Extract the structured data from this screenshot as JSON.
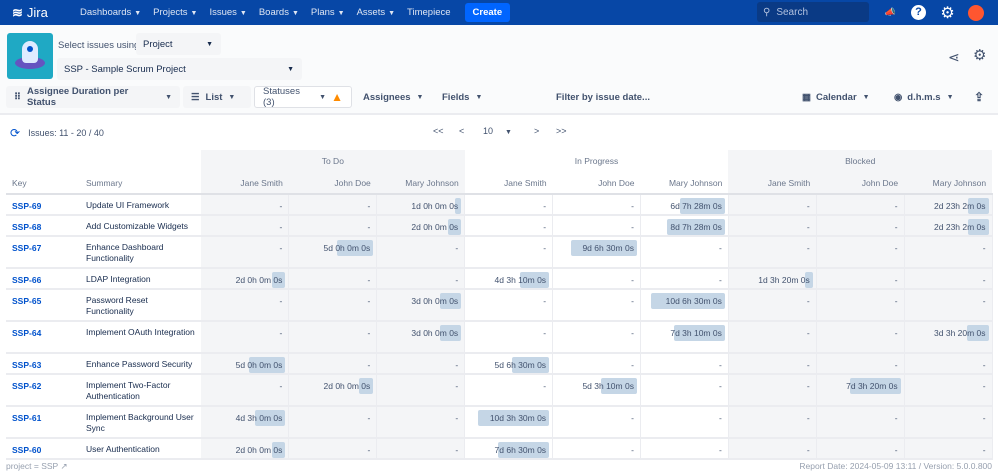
{
  "topnav": {
    "brand": "Jira",
    "items": [
      "Dashboards",
      "Projects",
      "Issues",
      "Boards",
      "Plans",
      "Assets"
    ],
    "timepiece": "Timepiece",
    "create": "Create",
    "search_placeholder": "Search"
  },
  "selector": {
    "label": "Select issues using",
    "mode": "Project",
    "project": "SSP - Sample Scrum Project"
  },
  "toolbar": {
    "report": "Assignee Duration per Status",
    "view": "List",
    "statuses": "Statuses (3)",
    "assignees": "Assignees",
    "fields": "Fields",
    "filter": "Filter by issue date...",
    "calendar": "Calendar",
    "format": "d.h.m.s"
  },
  "issues_info": "Issues: 11 - 20 / 40",
  "pager": {
    "first": "<<",
    "prev": "<",
    "page_size": "10",
    "next": ">",
    "last": ">>"
  },
  "table": {
    "key_header": "Key",
    "summary_header": "Summary",
    "groups": [
      "To Do",
      "In Progress",
      "Blocked"
    ],
    "assignees": [
      "Jane Smith",
      "John Doe",
      "Mary Johnson"
    ],
    "rows": [
      {
        "key": "SSP-69",
        "summary": "Update UI Framework",
        "cells": [
          "-",
          "-",
          "1d 0h 0m 0s",
          "-",
          "-",
          "6d 7h 28m 0s",
          "-",
          "-",
          "2d 23h 2m 0s"
        ],
        "bars": [
          0,
          0,
          0.08,
          0,
          0,
          0.55,
          0,
          0,
          0.25
        ]
      },
      {
        "key": "SSP-68",
        "summary": "Add Customizable Widgets",
        "cells": [
          "-",
          "-",
          "2d 0h 0m 0s",
          "-",
          "-",
          "8d 7h 28m 0s",
          "-",
          "-",
          "2d 23h 2m 0s"
        ],
        "bars": [
          0,
          0,
          0.16,
          0,
          0,
          0.71,
          0,
          0,
          0.25
        ]
      },
      {
        "key": "SSP-67",
        "summary": "Enhance Dashboard Functionality",
        "cells": [
          "-",
          "5d 0h 0m 0s",
          "-",
          "-",
          "9d 6h 30m 0s",
          "-",
          "-",
          "-",
          "-"
        ],
        "bars": [
          0,
          0.44,
          0,
          0,
          0.81,
          0,
          0,
          0,
          0
        ]
      },
      {
        "key": "SSP-66",
        "summary": "LDAP Integration",
        "cells": [
          "2d 0h 0m 0s",
          "-",
          "-",
          "4d 3h 10m 0s",
          "-",
          "-",
          "1d 3h 20m 0s",
          "-",
          "-"
        ],
        "bars": [
          0.16,
          0,
          0,
          0.35,
          0,
          0,
          0.1,
          0,
          0
        ]
      },
      {
        "key": "SSP-65",
        "summary": "Password Reset Functionality",
        "cells": [
          "-",
          "-",
          "3d 0h 0m 0s",
          "-",
          "-",
          "10d 6h 30m 0s",
          "-",
          "-",
          "-"
        ],
        "bars": [
          0,
          0,
          0.26,
          0,
          0,
          0.9,
          0,
          0,
          0
        ]
      },
      {
        "key": "SSP-64",
        "summary": "Implement OAuth Integration",
        "cells": [
          "-",
          "-",
          "3d 0h 0m 0s",
          "-",
          "-",
          "7d 3h 10m 0s",
          "-",
          "-",
          "3d 3h 20m 0s"
        ],
        "bars": [
          0,
          0,
          0.26,
          0,
          0,
          0.62,
          0,
          0,
          0.26
        ]
      },
      {
        "key": "SSP-63",
        "summary": "Enhance Password Security",
        "cells": [
          "5d 0h 0m 0s",
          "-",
          "-",
          "5d 6h 30m 0s",
          "-",
          "-",
          "-",
          "-",
          "-"
        ],
        "bars": [
          0.44,
          0,
          0,
          0.45,
          0,
          0,
          0,
          0,
          0
        ]
      },
      {
        "key": "SSP-62",
        "summary": "Implement Two-Factor Authentication",
        "cells": [
          "-",
          "2d 0h 0m 0s",
          "-",
          "-",
          "5d 3h 10m 0s",
          "-",
          "-",
          "7d 3h 20m 0s",
          "-"
        ],
        "bars": [
          0,
          0.17,
          0,
          0,
          0.44,
          0,
          0,
          0.62,
          0
        ]
      },
      {
        "key": "SSP-61",
        "summary": "Implement Background User Sync",
        "cells": [
          "4d 3h 0m 0s",
          "-",
          "-",
          "10d 3h 30m 0s",
          "-",
          "-",
          "-",
          "-",
          "-"
        ],
        "bars": [
          0.37,
          0,
          0,
          0.87,
          0,
          0,
          0,
          0,
          0
        ]
      },
      {
        "key": "SSP-60",
        "summary": "User Authentication",
        "cells": [
          "2d 0h 0m 0s",
          "-",
          "-",
          "7d 6h 30m 0s",
          "-",
          "-",
          "-",
          "-",
          "-"
        ],
        "bars": [
          0.16,
          0,
          0,
          0.62,
          0,
          0,
          0,
          0,
          0
        ]
      }
    ]
  },
  "footer": {
    "jql": "project = SSP",
    "report": "Report Date: 2024-05-09 13:11 / Version: 5.0.0.800"
  },
  "colors": {
    "nav": "#0747a6",
    "bar": "#c5d6e6",
    "link": "#0052cc",
    "warning": "#ff8b00"
  }
}
